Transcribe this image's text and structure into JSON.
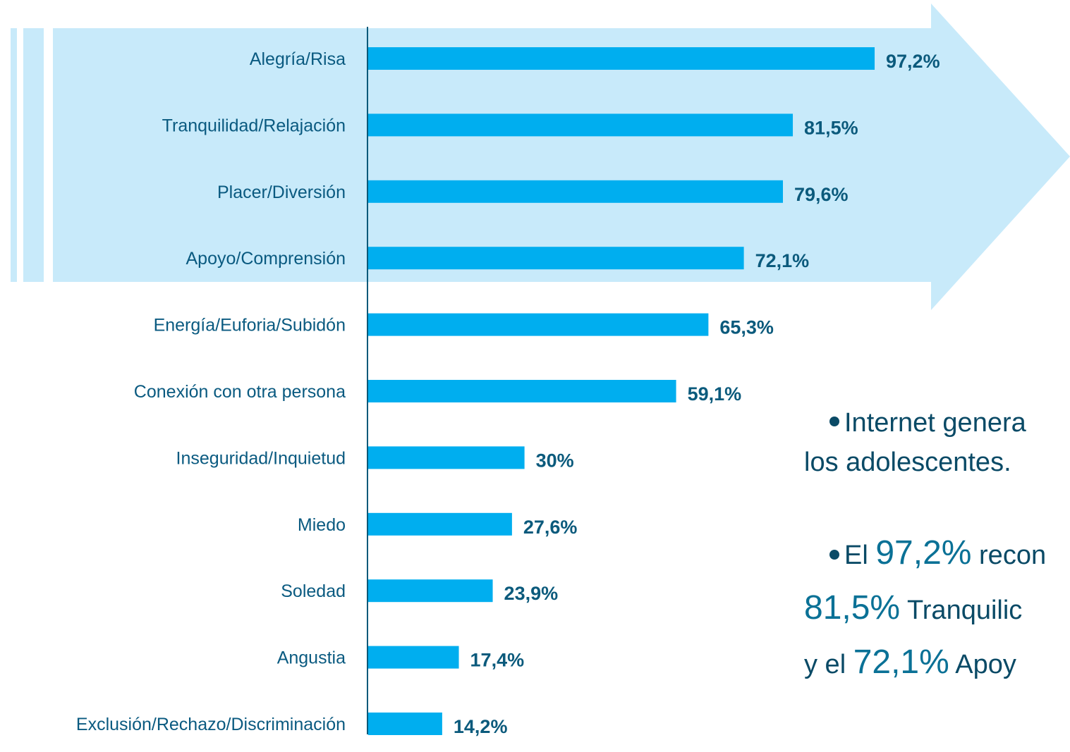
{
  "chart_data": {
    "type": "hbar",
    "categories": [
      "Alegría/Risa",
      "Tranquilidad/Relajación",
      "Placer/Diversión",
      "Apoyo/Comprensión",
      "Energía/Euforia/Subidón",
      "Conexión con otra persona",
      "Inseguridad/Inquietud",
      "Miedo",
      "Soledad",
      "Angustia",
      "Exclusión/Rechazo/Discriminación"
    ],
    "values": [
      97.2,
      81.5,
      79.6,
      72.1,
      65.3,
      59.1,
      30,
      27.6,
      23.9,
      17.4,
      14.2
    ],
    "value_labels": [
      "97,2%",
      "81,5%",
      "79,6%",
      "72,1%",
      "65,3%",
      "59,1%",
      "30%",
      "27,6%",
      "23,9%",
      "17,4%",
      "14,2%"
    ],
    "color": "#00aeef",
    "xlim": [
      0,
      100
    ],
    "annotations": [
      {
        "lines": [
          [
            "Internet genera"
          ],
          [
            "los adolescentes."
          ]
        ]
      },
      {
        "lines": [
          [
            "El ",
            {
              "text": "97,2%",
              "emphasis": true
            },
            " recon"
          ],
          [
            {
              "text": "81,5%",
              "emphasis": true
            },
            " Tranquilic"
          ],
          [
            "y el ",
            {
              "text": "72,1%",
              "emphasis": true
            },
            " Apoy"
          ]
        ]
      }
    ]
  }
}
